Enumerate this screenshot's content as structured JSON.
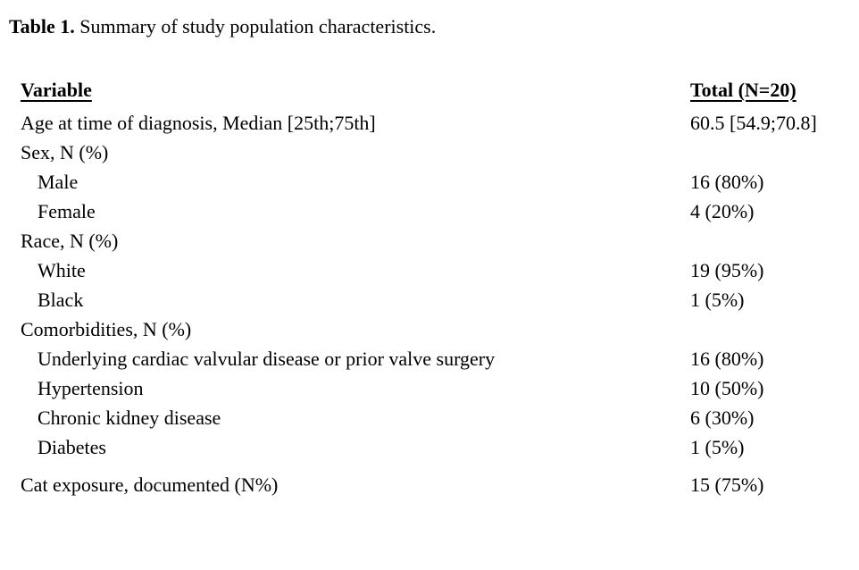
{
  "page": {
    "background_color": "#ffffff",
    "text_color": "#000000"
  },
  "title": {
    "label": "Table 1.",
    "text": "Summary of study population characteristics."
  },
  "table": {
    "header": {
      "variable": "Variable",
      "total": "Total (N=20)"
    },
    "rows": [
      {
        "label": "Age at time of diagnosis, Median [25th;75th]",
        "value": "60.5 [54.9;70.8]",
        "indent": false,
        "section": false,
        "gap_before": false
      },
      {
        "label": "Sex, N (%)",
        "value": "",
        "indent": false,
        "section": true,
        "gap_before": false
      },
      {
        "label": "Male",
        "value": "16 (80%)",
        "indent": true,
        "section": false,
        "gap_before": false
      },
      {
        "label": "Female",
        "value": "4 (20%)",
        "indent": true,
        "section": false,
        "gap_before": false
      },
      {
        "label": "Race, N (%)",
        "value": "",
        "indent": false,
        "section": true,
        "gap_before": false
      },
      {
        "label": "White",
        "value": "19 (95%)",
        "indent": true,
        "section": false,
        "gap_before": false
      },
      {
        "label": "Black",
        "value": "1 (5%)",
        "indent": true,
        "section": false,
        "gap_before": false
      },
      {
        "label": "Comorbidities, N (%)",
        "value": "",
        "indent": false,
        "section": true,
        "gap_before": false
      },
      {
        "label": "Underlying cardiac valvular disease or prior valve surgery",
        "value": "16 (80%)",
        "indent": true,
        "section": false,
        "gap_before": false
      },
      {
        "label": "Hypertension",
        "value": "10 (50%)",
        "indent": true,
        "section": false,
        "gap_before": false
      },
      {
        "label": "Chronic kidney disease",
        "value": "6 (30%)",
        "indent": true,
        "section": false,
        "gap_before": false
      },
      {
        "label": "Diabetes",
        "value": "1 (5%)",
        "indent": true,
        "section": false,
        "gap_before": false
      },
      {
        "label": "Cat exposure, documented (N%)",
        "value": "15 (75%)",
        "indent": false,
        "section": false,
        "gap_before": true
      }
    ]
  }
}
